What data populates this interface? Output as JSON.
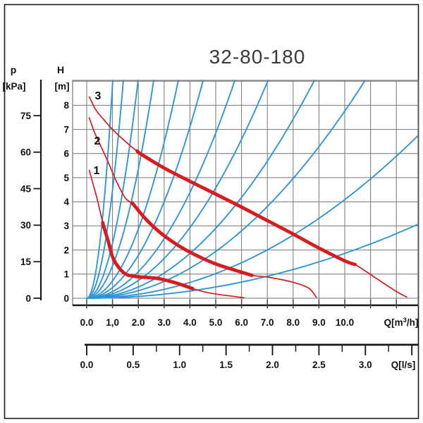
{
  "title": "32-80-180",
  "axes": {
    "pressure": {
      "symbol": "p",
      "unit": "[kPa]",
      "ticks": [
        0,
        15,
        30,
        45,
        60,
        75
      ]
    },
    "head": {
      "symbol": "H",
      "unit": "[m]",
      "ticks": [
        0,
        1,
        2,
        3,
        4,
        5,
        6,
        7,
        8
      ]
    },
    "flow_m3h": {
      "label": "Q[m³/h]",
      "tick_labels": [
        "0.0",
        "1,0",
        "2.0",
        "3.0",
        "4.0",
        "5.0",
        "6.0",
        "7.0",
        "8.0",
        "9.0",
        "10.0"
      ]
    },
    "flow_ls": {
      "label": "Q[l/s]",
      "tick_labels": [
        "0.0",
        "0.5",
        "1.0",
        "1.5",
        "2.0",
        "2.5",
        "3.0"
      ]
    }
  },
  "chart_data": {
    "type": "line",
    "title": "32-80-180",
    "x_axis": {
      "label": "Q[m³/h]",
      "visible_range": [
        -0.55,
        12.84
      ],
      "tick_step": 1,
      "labeled_ticks": [
        "0.0",
        "1,0",
        "2.0",
        "3.0",
        "4.0",
        "5.0",
        "6.0",
        "7.0",
        "8.0",
        "9.0",
        "10.0"
      ]
    },
    "secondary_x_axis": {
      "label": "Q[l/s]",
      "range": [
        0,
        3.5
      ],
      "major_tick_step": 0.5,
      "minor_tick_step": 0.25,
      "labeled_ticks": [
        "0.0",
        "0.5",
        "1.0",
        "1.5",
        "2.0",
        "2.5",
        "3.0"
      ],
      "conversion": "1 l/s = 3.6 m³/h"
    },
    "y_axis_head": {
      "label": "H [m]",
      "range": [
        -0.3,
        9.04
      ],
      "tick_step": 1,
      "labeled_ticks": [
        0,
        1,
        2,
        3,
        4,
        5,
        6,
        7,
        8
      ]
    },
    "y_axis_pressure": {
      "label": "p [kPa]",
      "labeled_ticks": [
        0,
        15,
        30,
        45,
        60,
        75
      ]
    },
    "grid": true,
    "pump_curves": [
      {
        "name": "1",
        "points": [
          [
            0.1,
            5.3
          ],
          [
            0.25,
            4.72
          ],
          [
            0.4,
            4.14
          ],
          [
            0.52,
            3.6
          ],
          [
            0.65,
            3.0
          ],
          [
            0.85,
            2.3
          ],
          [
            1.0,
            1.72
          ],
          [
            1.25,
            1.26
          ],
          [
            1.55,
            0.98
          ],
          [
            2.0,
            0.89
          ],
          [
            2.75,
            0.82
          ],
          [
            3.5,
            0.62
          ],
          [
            4.1,
            0.4
          ],
          [
            4.85,
            0.2
          ],
          [
            6.1,
            0.02
          ]
        ],
        "thick_q_range": [
          0.62,
          4.1
        ]
      },
      {
        "name": "2",
        "points": [
          [
            0.1,
            7.48
          ],
          [
            0.3,
            6.88
          ],
          [
            0.55,
            6.3
          ],
          [
            0.85,
            5.6
          ],
          [
            1.15,
            4.85
          ],
          [
            1.5,
            4.15
          ],
          [
            1.8,
            3.9
          ],
          [
            2.3,
            3.27
          ],
          [
            2.85,
            2.72
          ],
          [
            3.5,
            2.22
          ],
          [
            4.2,
            1.8
          ],
          [
            5.0,
            1.42
          ],
          [
            5.75,
            1.16
          ],
          [
            6.4,
            0.95
          ],
          [
            7.1,
            0.86
          ],
          [
            8.0,
            0.66
          ],
          [
            8.6,
            0.42
          ],
          [
            8.9,
            0.04
          ]
        ],
        "thick_q_range": [
          1.78,
          6.4
        ]
      },
      {
        "name": "3",
        "points": [
          [
            0.1,
            8.35
          ],
          [
            0.35,
            7.82
          ],
          [
            0.65,
            7.42
          ],
          [
            1.0,
            7.0
          ],
          [
            1.5,
            6.5
          ],
          [
            2.1,
            5.98
          ],
          [
            3.0,
            5.4
          ],
          [
            4.0,
            4.85
          ],
          [
            5.0,
            4.32
          ],
          [
            6.0,
            3.78
          ],
          [
            7.0,
            3.22
          ],
          [
            8.0,
            2.66
          ],
          [
            9.0,
            2.08
          ],
          [
            10.0,
            1.55
          ],
          [
            10.4,
            1.4
          ],
          [
            11.2,
            0.84
          ],
          [
            12.0,
            0.28
          ],
          [
            12.4,
            0.05
          ]
        ],
        "thick_q_range": [
          1.95,
          10.4
        ]
      }
    ],
    "system_curves": {
      "model": "H = k × Q²",
      "k_values": [
        8.86,
        4.48,
        2.28,
        1.34,
        0.717,
        0.444,
        0.274,
        0.183,
        0.116,
        0.0776,
        0.0409,
        0.0186
      ]
    }
  },
  "colors": {
    "pump_curve_red": "#da1a1e",
    "system_curve_blue": "#2e96d5",
    "grid": "#757575",
    "axis": "#1a1a1a",
    "tick": "#444444",
    "title": "#3a3a3a",
    "background": "#ffffff"
  }
}
